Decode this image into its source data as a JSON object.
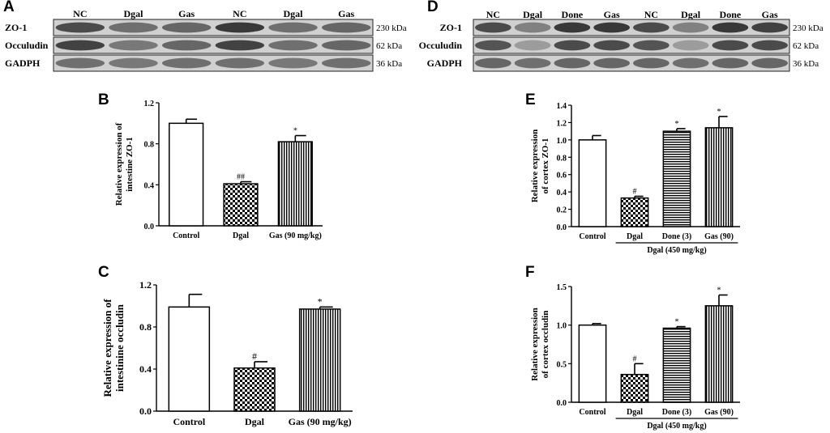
{
  "panels": {
    "A": "A",
    "B": "B",
    "C": "C",
    "D": "D",
    "E": "E",
    "F": "F"
  },
  "patterns": {
    "Control": "solid",
    "Dgal": "checker",
    "Gas": "vlines",
    "Done": "hlines"
  },
  "blot_A": {
    "lanes": [
      "NC",
      "Dgal",
      "Gas",
      "NC",
      "Dgal",
      "Gas"
    ],
    "rows": [
      {
        "label": "ZO-1",
        "kda": "230 kDa",
        "intensity": [
          0.75,
          0.55,
          0.6,
          0.85,
          0.55,
          0.6
        ]
      },
      {
        "label": "Occuludin",
        "kda": "62 kDa",
        "intensity": [
          0.8,
          0.5,
          0.6,
          0.8,
          0.55,
          0.6
        ]
      },
      {
        "label": "GADPH",
        "kda": "36 kDa",
        "intensity": [
          0.55,
          0.5,
          0.55,
          0.55,
          0.5,
          0.55
        ]
      }
    ]
  },
  "blot_D": {
    "lanes": [
      "NC",
      "Dgal",
      "Done",
      "Gas",
      "NC",
      "Dgal",
      "Done",
      "Gas"
    ],
    "rows": [
      {
        "label": "ZO-1",
        "kda": "230 kDa",
        "intensity": [
          0.75,
          0.45,
          0.85,
          0.85,
          0.75,
          0.45,
          0.85,
          0.8
        ]
      },
      {
        "label": "Occuludin",
        "kda": "62 kDa",
        "intensity": [
          0.7,
          0.3,
          0.75,
          0.75,
          0.7,
          0.3,
          0.75,
          0.75
        ]
      },
      {
        "label": "GADPH",
        "kda": "36 kDa",
        "intensity": [
          0.6,
          0.55,
          0.6,
          0.6,
          0.6,
          0.55,
          0.6,
          0.6
        ]
      }
    ]
  },
  "chart_data": [
    {
      "panel": "B",
      "type": "bar",
      "ylabel": [
        "Relative expression of",
        "intestine ZO-1"
      ],
      "categories": [
        "Control",
        "Dgal",
        "Gas (90 mg/kg)"
      ],
      "values": [
        1.0,
        0.41,
        0.82
      ],
      "errors": [
        0.04,
        0.02,
        0.06
      ],
      "annotations": [
        "",
        "##",
        "*"
      ],
      "ylim": [
        0,
        1.2
      ],
      "yticks": [
        "0.0",
        "0.4",
        "0.8",
        "1.2"
      ],
      "group_label": ""
    },
    {
      "panel": "C",
      "type": "bar",
      "ylabel": [
        "Relative expression of",
        "intestinine occludin"
      ],
      "categories": [
        "Control",
        "Dgal",
        "Gas (90 mg/kg)"
      ],
      "values": [
        0.99,
        0.41,
        0.97
      ],
      "errors": [
        0.12,
        0.06,
        0.02
      ],
      "annotations": [
        "",
        "#",
        "*"
      ],
      "ylim": [
        0,
        1.2
      ],
      "yticks": [
        "0.0",
        "0.4",
        "0.8",
        "1.2"
      ],
      "group_label": ""
    },
    {
      "panel": "E",
      "type": "bar",
      "ylabel": [
        "Relative expression",
        "of cortex ZO-1"
      ],
      "categories": [
        "Control",
        "Dgal",
        "Done (3)",
        "Gas (90)"
      ],
      "values": [
        1.0,
        0.33,
        1.1,
        1.14
      ],
      "errors": [
        0.05,
        0.02,
        0.03,
        0.13
      ],
      "annotations": [
        "",
        "#",
        "*",
        "*"
      ],
      "ylim": [
        0,
        1.4
      ],
      "yticks": [
        "0.0",
        "0.2",
        "0.4",
        "0.6",
        "0.8",
        "1.0",
        "1.2",
        "1.4"
      ],
      "group_label": "Dgal (450 mg/kg)"
    },
    {
      "panel": "F",
      "type": "bar",
      "ylabel": [
        "Relative expression",
        "of cortex occludin"
      ],
      "categories": [
        "Control",
        "Dgal",
        "Done (3)",
        "Gas (90)"
      ],
      "values": [
        1.0,
        0.36,
        0.96,
        1.25
      ],
      "errors": [
        0.02,
        0.14,
        0.02,
        0.14
      ],
      "annotations": [
        "",
        "#",
        "*",
        "*"
      ],
      "ylim": [
        0,
        1.5
      ],
      "yticks": [
        "0.0",
        "0.5",
        "1.0",
        "1.5"
      ],
      "group_label": "Dgal (450 mg/kg)"
    }
  ]
}
